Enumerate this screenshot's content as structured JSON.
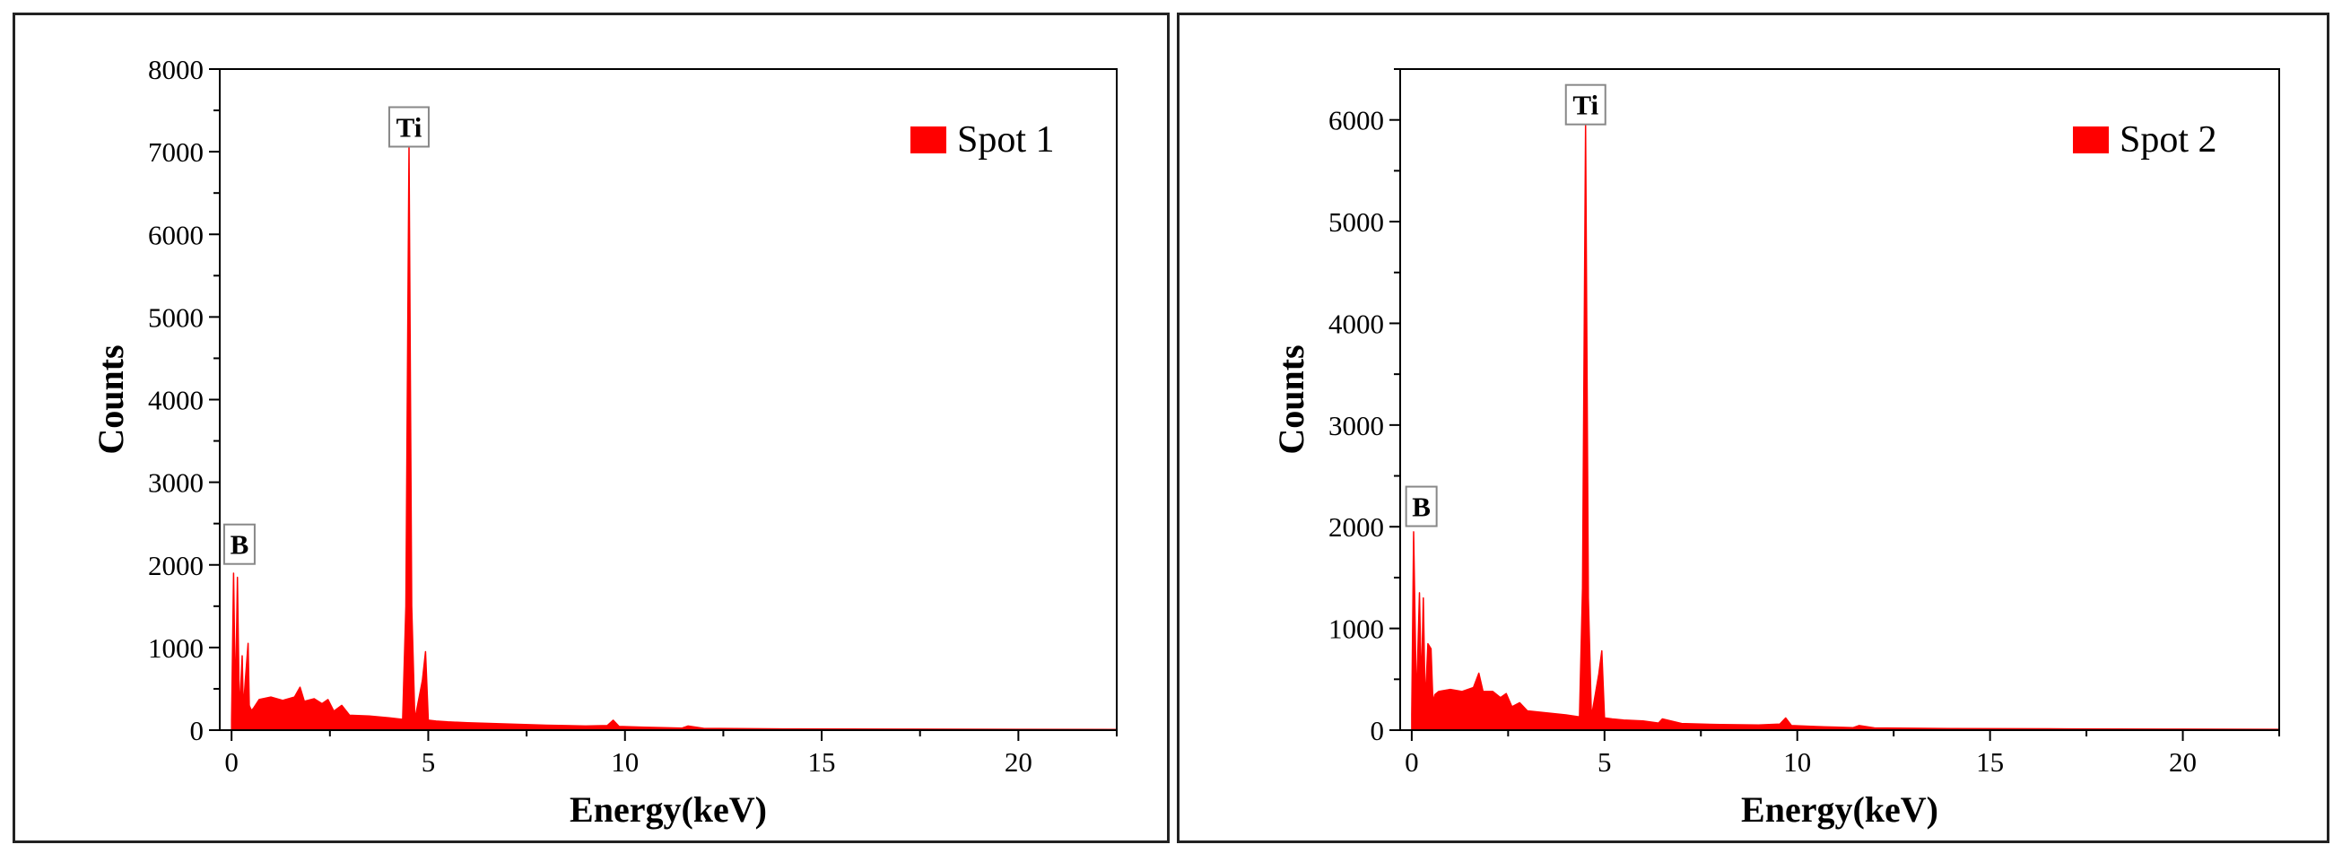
{
  "colors": {
    "series": "#ff0000",
    "axis": "#000000",
    "frame": "#222222"
  },
  "chart_data": [
    {
      "type": "area",
      "xlabel": "Energy(keV)",
      "ylabel": "Counts",
      "xlim": [
        -0.3,
        22.5
      ],
      "ylim": [
        0,
        8000
      ],
      "xticks": [
        0,
        5,
        10,
        15,
        20
      ],
      "yticks": [
        0,
        1000,
        2000,
        3000,
        4000,
        5000,
        6000,
        7000,
        8000
      ],
      "ytick_labels": [
        "0",
        "1000",
        "2000",
        "3000",
        "4000",
        "5000",
        "6000",
        "7000",
        "8000"
      ],
      "legend": {
        "label": "Spot 1",
        "position": "top-right"
      },
      "annotations": [
        {
          "text": "Ti",
          "x": 4.51,
          "y": 7300
        },
        {
          "text": "B",
          "x": 0.2,
          "y": 2250
        }
      ],
      "series": [
        {
          "name": "Spot 1",
          "x": [
            0,
            0.05,
            0.1,
            0.15,
            0.2,
            0.27,
            0.3,
            0.35,
            0.42,
            0.45,
            0.5,
            0.55,
            0.7,
            1.0,
            1.3,
            1.6,
            1.74,
            1.85,
            2.1,
            2.3,
            2.45,
            2.6,
            2.8,
            3.0,
            3.5,
            4.0,
            4.35,
            4.43,
            4.51,
            4.58,
            4.66,
            4.85,
            4.93,
            5.0,
            5.2,
            5.5,
            6.0,
            7.0,
            8.0,
            9.0,
            9.55,
            9.7,
            9.85,
            10.5,
            11.0,
            11.45,
            11.6,
            12.0,
            14.0,
            17.0,
            20.0,
            22.5
          ],
          "values": [
            120,
            1900,
            300,
            1850,
            200,
            900,
            250,
            600,
            1050,
            300,
            240,
            260,
            370,
            400,
            360,
            400,
            520,
            350,
            380,
            320,
            370,
            230,
            300,
            180,
            170,
            150,
            130,
            1500,
            7100,
            1500,
            130,
            600,
            950,
            120,
            110,
            100,
            90,
            75,
            60,
            50,
            55,
            120,
            45,
            35,
            30,
            25,
            50,
            22,
            15,
            12,
            10,
            8
          ]
        }
      ]
    },
    {
      "type": "area",
      "xlabel": "Energy(keV)",
      "ylabel": "Counts",
      "xlim": [
        -0.3,
        22.5
      ],
      "ylim": [
        0,
        6500
      ],
      "xticks": [
        0,
        5,
        10,
        15,
        20
      ],
      "yticks": [
        0,
        1000,
        2000,
        3000,
        4000,
        5000,
        6000
      ],
      "ytick_labels": [
        "0",
        "1000",
        "2000",
        "3000",
        "4000",
        "5000",
        "6000"
      ],
      "legend": {
        "label": "Spot 2",
        "position": "top-right"
      },
      "annotations": [
        {
          "text": "Ti",
          "x": 4.51,
          "y": 6150
        },
        {
          "text": "B",
          "x": 0.25,
          "y": 2200
        }
      ],
      "series": [
        {
          "name": "Spot 2",
          "x": [
            0,
            0.05,
            0.12,
            0.2,
            0.25,
            0.3,
            0.35,
            0.42,
            0.5,
            0.55,
            0.6,
            0.7,
            1.0,
            1.3,
            1.6,
            1.74,
            1.85,
            2.1,
            2.3,
            2.45,
            2.6,
            2.8,
            3.0,
            3.5,
            4.0,
            4.35,
            4.43,
            4.51,
            4.58,
            4.66,
            4.85,
            4.93,
            5.0,
            5.2,
            5.5,
            6.0,
            6.4,
            6.5,
            7.0,
            8.0,
            9.0,
            9.55,
            9.7,
            9.85,
            10.5,
            11.0,
            11.45,
            11.6,
            12.0,
            14.0,
            17.0,
            20.0,
            22.5
          ],
          "values": [
            150,
            1950,
            250,
            1350,
            400,
            1300,
            250,
            850,
            800,
            280,
            350,
            380,
            400,
            380,
            420,
            560,
            380,
            380,
            320,
            360,
            230,
            270,
            190,
            170,
            150,
            130,
            1400,
            5950,
            1300,
            130,
            550,
            780,
            120,
            110,
            100,
            90,
            70,
            110,
            65,
            55,
            50,
            60,
            120,
            45,
            35,
            30,
            25,
            45,
            22,
            15,
            12,
            10,
            8
          ]
        }
      ]
    }
  ]
}
